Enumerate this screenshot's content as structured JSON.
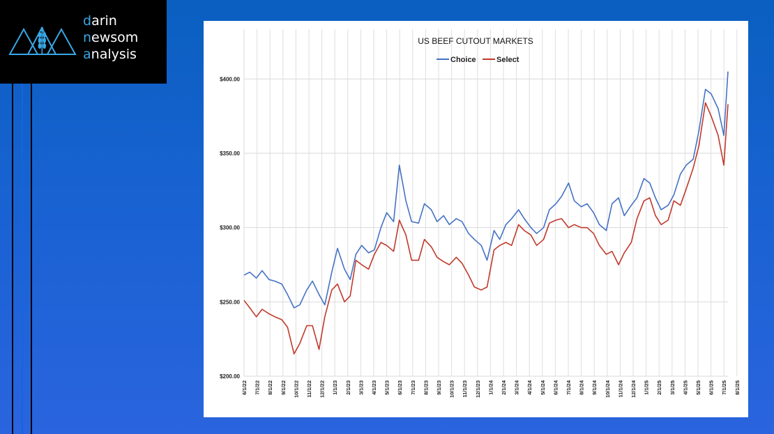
{
  "branding": {
    "lines": [
      {
        "accent": "d",
        "rest": "arin"
      },
      {
        "accent": "n",
        "rest": "ewsom"
      },
      {
        "accent": "a",
        "rest": "nalysis"
      }
    ],
    "accent_color": "#39a7e6"
  },
  "chart_data": {
    "type": "line",
    "title": "US BEEF CUTOUT MARKETS",
    "xlabel": "",
    "ylabel": "",
    "ylim": [
      200,
      410
    ],
    "yticks": [
      200,
      250,
      300,
      350,
      400
    ],
    "ytick_labels": [
      "$200.00",
      "$250.00",
      "$300.00",
      "$350.00",
      "$400.00"
    ],
    "grid": true,
    "legend_position": "top-center",
    "x_tick_labels": [
      "6/1/22",
      "7/1/22",
      "8/1/22",
      "9/1/22",
      "10/1/22",
      "11/1/22",
      "12/1/22",
      "1/1/23",
      "2/1/23",
      "3/1/23",
      "4/1/23",
      "5/1/23",
      "6/1/23",
      "7/1/23",
      "8/1/23",
      "9/1/23",
      "10/1/23",
      "11/1/23",
      "12/1/23",
      "1/1/24",
      "2/1/24",
      "3/1/24",
      "4/1/24",
      "5/1/24",
      "6/1/24",
      "7/1/24",
      "8/1/24",
      "9/1/24",
      "10/1/24",
      "11/1/24",
      "12/1/24",
      "1/1/25",
      "2/1/25",
      "3/1/25",
      "4/1/25",
      "5/1/25",
      "6/1/25",
      "7/1/25",
      "8/1/25"
    ],
    "x": [
      "2022-06-01",
      "2022-06-15",
      "2022-07-01",
      "2022-07-15",
      "2022-08-01",
      "2022-08-15",
      "2022-09-01",
      "2022-09-15",
      "2022-10-01",
      "2022-10-15",
      "2022-11-01",
      "2022-11-15",
      "2022-12-01",
      "2022-12-15",
      "2023-01-01",
      "2023-01-15",
      "2023-02-01",
      "2023-02-15",
      "2023-03-01",
      "2023-03-15",
      "2023-04-01",
      "2023-04-15",
      "2023-05-01",
      "2023-05-15",
      "2023-06-01",
      "2023-06-15",
      "2023-07-01",
      "2023-07-15",
      "2023-08-01",
      "2023-08-15",
      "2023-09-01",
      "2023-09-15",
      "2023-10-01",
      "2023-10-15",
      "2023-11-01",
      "2023-11-15",
      "2023-12-01",
      "2023-12-15",
      "2024-01-01",
      "2024-01-15",
      "2024-02-01",
      "2024-02-15",
      "2024-03-01",
      "2024-03-15",
      "2024-04-01",
      "2024-04-15",
      "2024-05-01",
      "2024-05-15",
      "2024-06-01",
      "2024-06-15",
      "2024-07-01",
      "2024-07-15",
      "2024-08-01",
      "2024-08-15",
      "2024-09-01",
      "2024-09-15",
      "2024-10-01",
      "2024-10-15",
      "2024-11-01",
      "2024-11-15",
      "2024-12-01",
      "2024-12-15",
      "2025-01-01",
      "2025-01-15",
      "2025-02-01",
      "2025-02-15",
      "2025-03-01",
      "2025-03-15",
      "2025-04-01",
      "2025-04-15",
      "2025-05-01",
      "2025-05-15",
      "2025-06-01",
      "2025-06-15",
      "2025-07-01",
      "2025-07-15",
      "2025-08-01",
      "2025-08-15",
      "2025-08-25"
    ],
    "series": [
      {
        "name": "Choice",
        "color": "#4472c4",
        "values": [
          268,
          270,
          266,
          271,
          265,
          264,
          262,
          255,
          246,
          248,
          258,
          264,
          255,
          248,
          270,
          286,
          272,
          265,
          282,
          288,
          283,
          285,
          300,
          310,
          304,
          342,
          318,
          304,
          303,
          316,
          312,
          304,
          308,
          302,
          306,
          304,
          296,
          292,
          288,
          278,
          298,
          292,
          302,
          306,
          312,
          306,
          300,
          296,
          300,
          312,
          316,
          321,
          330,
          318,
          314,
          316,
          310,
          302,
          298,
          316,
          320,
          308,
          315,
          320,
          333,
          330,
          320,
          312,
          315,
          322,
          336,
          342,
          346,
          365,
          393,
          390,
          380,
          362,
          405
        ]
      },
      {
        "name": "Select",
        "color": "#c0392b",
        "values": [
          251,
          246,
          240,
          245,
          242,
          240,
          238,
          233,
          215,
          222,
          234,
          234,
          218,
          240,
          258,
          262,
          250,
          254,
          278,
          275,
          272,
          282,
          290,
          288,
          284,
          305,
          295,
          278,
          278,
          292,
          287,
          280,
          277,
          275,
          280,
          276,
          268,
          260,
          258,
          260,
          285,
          288,
          290,
          288,
          302,
          298,
          295,
          288,
          292,
          303,
          305,
          306,
          300,
          302,
          300,
          300,
          296,
          288,
          282,
          284,
          275,
          283,
          290,
          306,
          318,
          320,
          308,
          302,
          305,
          318,
          315,
          326,
          340,
          355,
          384,
          375,
          362,
          342,
          383
        ]
      }
    ]
  }
}
